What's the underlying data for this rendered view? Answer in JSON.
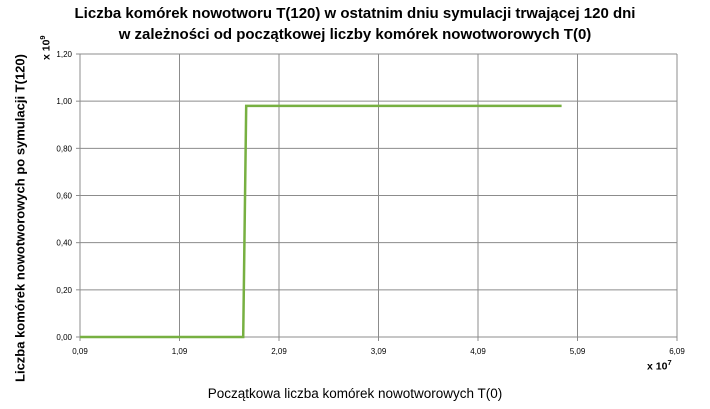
{
  "chart_data": {
    "type": "line",
    "title_lines": [
      "Liczba komórek nowotworu T(120) w ostatnim dniu symulacji trwającej 120 dni",
      "w zależności od początkowej liczby komórek nowotworowych T(0)"
    ],
    "xlabel": "Początkowa liczba komórek nowotworowych T(0)",
    "ylabel": "Liczba komórek nowotworowych po symulacji T(120)",
    "x_multiplier": "x 10",
    "x_multiplier_exp": "7",
    "y_multiplier": "x 10",
    "y_multiplier_exp": "9",
    "xlim": [
      0.09,
      6.09
    ],
    "ylim": [
      0,
      1.2
    ],
    "x_ticks": [
      0.09,
      1.09,
      2.09,
      3.09,
      4.09,
      5.09,
      6.09
    ],
    "x_tick_labels": [
      "0,09",
      "1,09",
      "2,09",
      "3,09",
      "4,09",
      "5,09",
      "6,09"
    ],
    "y_ticks": [
      0,
      0.2,
      0.4,
      0.6,
      0.8,
      1.0,
      1.2
    ],
    "y_tick_labels": [
      "0,00",
      "0,20",
      "0,40",
      "0,60",
      "0,80",
      "1,00",
      "1,20"
    ],
    "grid": true,
    "legend": "none",
    "series": [
      {
        "color": "#77b041",
        "x": [
          0.09,
          1.73,
          1.76,
          4.93
        ],
        "y": [
          0.0,
          0.0,
          0.98,
          0.98
        ]
      }
    ]
  }
}
